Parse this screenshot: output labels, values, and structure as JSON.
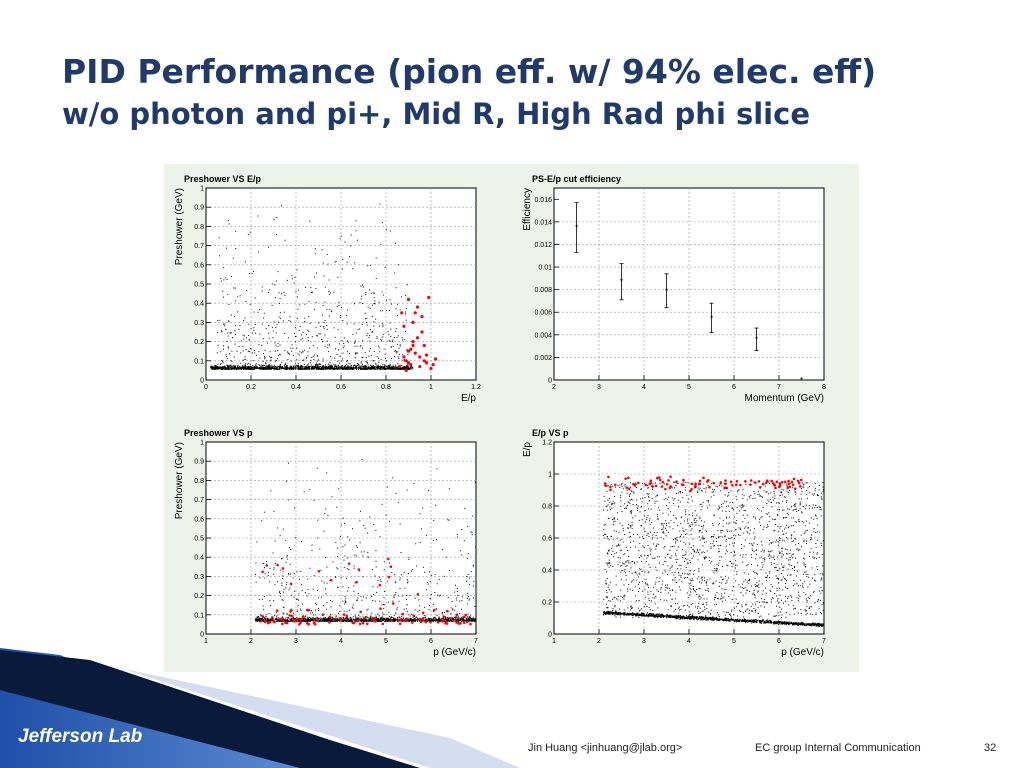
{
  "slide": {
    "title_line1": "PID Performance (pion eff. w/ 94% elec. eff)",
    "title_line2": "w/o photon and pi+, Mid R, High Rad phi slice",
    "logo_text": "Jefferson Lab",
    "author": "Jin Huang <jinhuang@jlab.org>",
    "group": "EC group Internal Communication",
    "page_number": "32"
  },
  "colors": {
    "title": "#1f3a6b",
    "accent_red": "#ff0000",
    "panel_bg": "#eef3ea",
    "band_dark": "#0a1a3a",
    "band_blue": "#2a63c8"
  },
  "chart_data": [
    {
      "type": "scatter",
      "title": "Preshower VS E/p",
      "xlabel": "E/p",
      "ylabel": "Preshower (GeV)",
      "xlim": [
        0,
        1.2
      ],
      "ylim": [
        0,
        1
      ],
      "xticks": [
        0,
        0.2,
        0.4,
        0.6,
        0.8,
        1,
        1.2
      ],
      "yticks": [
        0,
        0.1,
        0.2,
        0.3,
        0.4,
        0.5,
        0.6,
        0.7,
        0.8,
        0.9,
        1
      ],
      "grid": true,
      "series": [
        {
          "color": "#000000",
          "description_points": "dense band at Preshower 0.03-0.1 for E/p 0.02-0.9, sparse cloud up to 0.9 GeV"
        },
        {
          "color": "#ff0000",
          "x": [
            0.86,
            0.88,
            0.89,
            0.9,
            0.9,
            0.91,
            0.92,
            0.92,
            0.93,
            0.94,
            0.95,
            0.96,
            0.97,
            0.98,
            0.99,
            1.0,
            1.02,
            0.88,
            0.91,
            0.94,
            0.96,
            0.9,
            0.93,
            0.95,
            0.97,
            0.89,
            0.92,
            0.98,
            0.87,
            1.01
          ],
          "y": [
            0.07,
            0.12,
            0.1,
            0.42,
            0.15,
            0.08,
            0.3,
            0.2,
            0.35,
            0.38,
            0.12,
            0.25,
            0.18,
            0.09,
            0.43,
            0.06,
            0.11,
            0.28,
            0.16,
            0.22,
            0.33,
            0.09,
            0.14,
            0.07,
            0.1,
            0.05,
            0.18,
            0.13,
            0.35,
            0.08
          ]
        }
      ]
    },
    {
      "type": "scatter",
      "title": "PS-E/p cut efficiency",
      "xlabel": "Momentum (GeV)",
      "ylabel": "Efficiency",
      "xlim": [
        2,
        8
      ],
      "ylim": [
        0,
        0.017
      ],
      "xticks": [
        2,
        3,
        4,
        5,
        6,
        7,
        8
      ],
      "yticks": [
        0,
        0.002,
        0.004,
        0.006,
        0.008,
        0.01,
        0.012,
        0.014,
        0.016
      ],
      "grid": true,
      "x": [
        2.5,
        3.5,
        4.5,
        5.5,
        6.5,
        7.5
      ],
      "y": [
        0.0135,
        0.0087,
        0.0079,
        0.0055,
        0.0036,
        0.0
      ],
      "yerr": [
        0.0022,
        0.0016,
        0.0015,
        0.0013,
        0.001,
        0.0
      ]
    },
    {
      "type": "scatter",
      "title": "Preshower VS p",
      "xlabel": "p (GeV/c)",
      "ylabel": "Preshower (GeV)",
      "xlim": [
        1,
        7
      ],
      "ylim": [
        0,
        1
      ],
      "xticks": [
        1,
        2,
        3,
        4,
        5,
        6,
        7
      ],
      "yticks": [
        0,
        0.1,
        0.2,
        0.3,
        0.4,
        0.5,
        0.6,
        0.7,
        0.8,
        0.9,
        1
      ],
      "grid": true,
      "series": [
        {
          "color": "#000000",
          "description_points": "dense band at Preshower 0.05-0.1 for p 2.1-7, sparse cloud up to 0.9 GeV"
        },
        {
          "color": "#ff0000",
          "description_points": "electrons scattered at Preshower 0.05-0.45 across p 2.1-7"
        }
      ]
    },
    {
      "type": "scatter",
      "title": "E/p VS p",
      "xlabel": "p (GeV/c)",
      "ylabel": "E/p",
      "xlim": [
        1,
        7
      ],
      "ylim": [
        0,
        1.2
      ],
      "xticks": [
        1,
        2,
        3,
        4,
        5,
        6,
        7
      ],
      "yticks": [
        0,
        0.2,
        0.4,
        0.6,
        0.8,
        1,
        1.2
      ],
      "grid": true,
      "series": [
        {
          "color": "#000000",
          "description_points": "dense band near E/p 0.13 at p=2 falling to 0.05 at p=7, uniform cloud 0.1-0.95"
        },
        {
          "color": "#ff0000",
          "description_points": "electrons at E/p 0.85-1.05 for p 2.1-6.5"
        }
      ]
    }
  ]
}
